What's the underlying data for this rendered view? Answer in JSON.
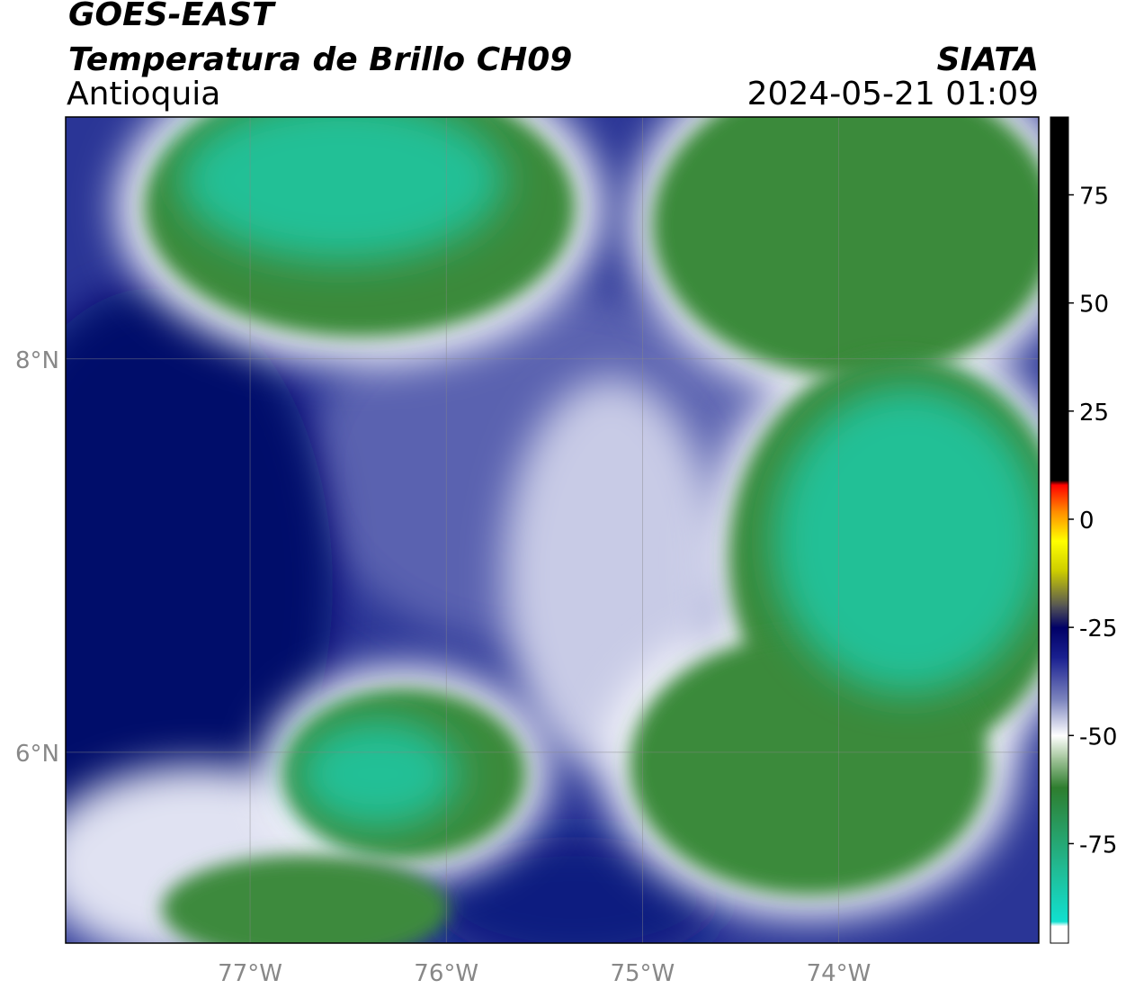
{
  "map": {
    "title": "GOES-EAST",
    "subtitle": "Temperatura de Brillo CH09",
    "region": "Antioquia",
    "source": "SIATA",
    "datetime": "2024-05-21 01:09",
    "xlim": [
      -77.94,
      -72.98
    ],
    "ylim": [
      5.03,
      9.23
    ],
    "xticks": [
      {
        "value": -77,
        "label": "77°W"
      },
      {
        "value": -76,
        "label": "76°W"
      },
      {
        "value": -75,
        "label": "75°W"
      },
      {
        "value": -74,
        "label": "74°W"
      }
    ],
    "yticks": [
      {
        "value": 6,
        "label": "6°N"
      },
      {
        "value": 8,
        "label": "8°N"
      }
    ],
    "grid": true,
    "colorbar": {
      "lim": [
        -98,
        93
      ],
      "ticks": [
        -75,
        -50,
        -25,
        0,
        25,
        50,
        75
      ],
      "stops": [
        {
          "value": -98,
          "color": "#ffffff"
        },
        {
          "value": -94,
          "color": "#ffffff"
        },
        {
          "value": -93,
          "color": "#11e0d0"
        },
        {
          "value": -80,
          "color": "#22b890"
        },
        {
          "value": -62,
          "color": "#2e7d2e"
        },
        {
          "value": -55,
          "color": "#a8c8a0"
        },
        {
          "value": -50,
          "color": "#ffffff"
        },
        {
          "value": -42,
          "color": "#8088c0"
        },
        {
          "value": -32,
          "color": "#1a2090"
        },
        {
          "value": -25,
          "color": "#000066"
        },
        {
          "value": -20,
          "color": "#555555"
        },
        {
          "value": -12,
          "color": "#cccc00"
        },
        {
          "value": -5,
          "color": "#ffff00"
        },
        {
          "value": 2,
          "color": "#ff8800"
        },
        {
          "value": 8,
          "color": "#ff0000"
        },
        {
          "value": 9,
          "color": "#000000"
        },
        {
          "value": 93,
          "color": "#000000"
        }
      ]
    }
  }
}
